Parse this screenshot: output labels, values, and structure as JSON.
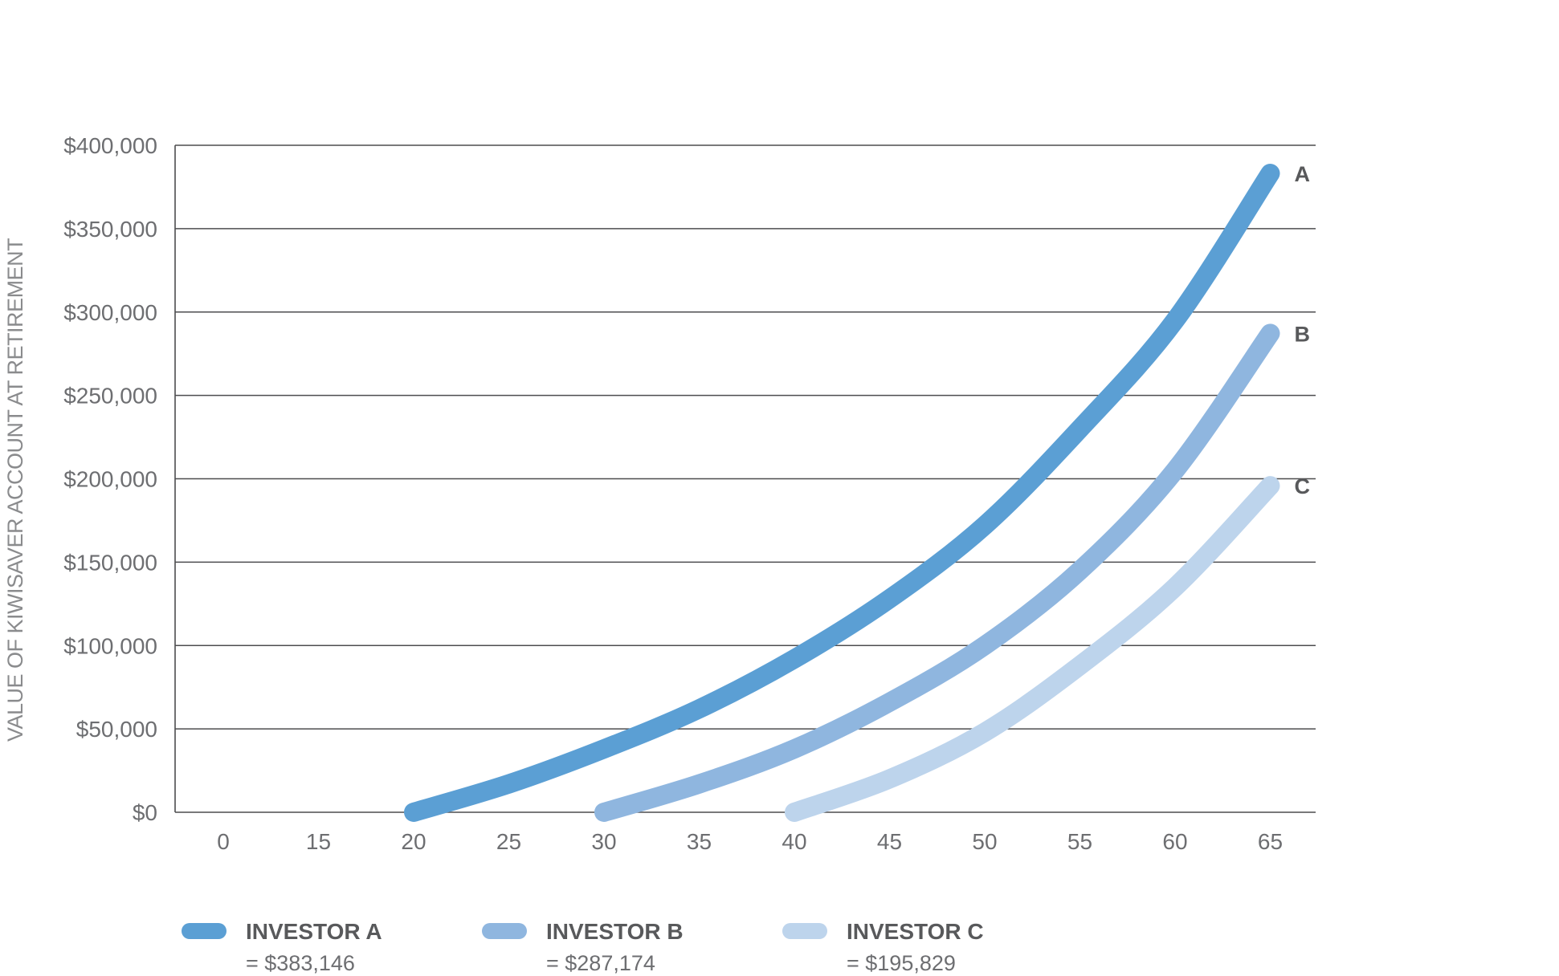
{
  "chart_data": {
    "type": "line",
    "title": "",
    "xlabel": "",
    "ylabel": "VALUE OF KIWISAVER ACCOUNT AT RETIREMENT",
    "x_ticks": [
      "0",
      "15",
      "20",
      "25",
      "30",
      "35",
      "40",
      "45",
      "50",
      "55",
      "60",
      "65"
    ],
    "y_ticks": [
      "$0",
      "$50,000",
      "$100,000",
      "$150,000",
      "$200,000",
      "$250,000",
      "$300,000",
      "$350,000",
      "$400,000"
    ],
    "ylim": [
      0,
      400000
    ],
    "grid": "horizontal",
    "legend_position": "bottom",
    "series": [
      {
        "name": "INVESTOR A",
        "end_label": "A",
        "legend_value": "= $383,146",
        "color": "#5b9fd4",
        "x": [
          20,
          25,
          30,
          35,
          40,
          45,
          50,
          55,
          60,
          65
        ],
        "y": [
          0,
          17000,
          38000,
          62000,
          92000,
          128000,
          172000,
          230000,
          295000,
          383146
        ]
      },
      {
        "name": "INVESTOR B",
        "end_label": "B",
        "legend_value": "= $287,174",
        "color": "#8fb6df",
        "x": [
          30,
          35,
          40,
          45,
          50,
          55,
          60,
          65
        ],
        "y": [
          0,
          17000,
          38000,
          66000,
          100000,
          145000,
          205000,
          287174
        ]
      },
      {
        "name": "INVESTOR C",
        "end_label": "C",
        "legend_value": "= $195,829",
        "color": "#bdd4ec",
        "x": [
          40,
          45,
          50,
          55,
          60,
          65
        ],
        "y": [
          0,
          20000,
          48000,
          88000,
          135000,
          195829
        ]
      }
    ]
  }
}
